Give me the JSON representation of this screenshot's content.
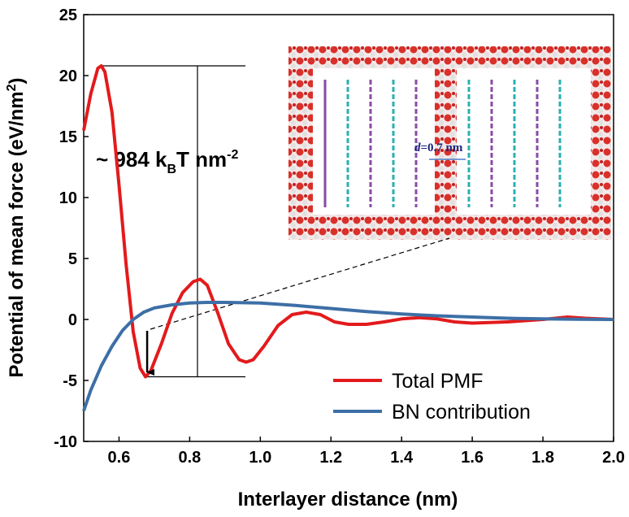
{
  "chart_data": {
    "type": "line",
    "x_label": "Interlayer distance (nm)",
    "y_label": {
      "text": "Potential of mean force (eV/nm",
      "sup": "2",
      "end": ")"
    },
    "annotation": {
      "pre": "~ 984 k",
      "sub": "B",
      "mid": "T nm",
      "sup": "-2"
    },
    "inset_label": {
      "var": "d",
      "rest": "=0.7 nm"
    },
    "xlim": [
      0.5,
      2.0
    ],
    "ylim": [
      -10,
      25
    ],
    "xticks": [
      0.6,
      0.8,
      {
        "value": 1,
        "label": "1.0"
      },
      1.2,
      1.4,
      1.6,
      1.8,
      {
        "value": 2,
        "label": "2.0"
      }
    ],
    "yticks": [
      -10,
      -5,
      0,
      5,
      10,
      15,
      20,
      25
    ],
    "legend": "lower right",
    "series": [
      {
        "name": "Total PMF",
        "color": "#e31a1c",
        "x": [
          0.5,
          0.52,
          0.54,
          0.55,
          0.56,
          0.58,
          0.6,
          0.62,
          0.64,
          0.66,
          0.675,
          0.69,
          0.72,
          0.75,
          0.78,
          0.81,
          0.83,
          0.85,
          0.88,
          0.91,
          0.94,
          0.96,
          0.98,
          1.01,
          1.05,
          1.09,
          1.13,
          1.17,
          1.21,
          1.25,
          1.3,
          1.35,
          1.4,
          1.45,
          1.5,
          1.55,
          1.6,
          1.7,
          1.8,
          1.87,
          1.92,
          2.0
        ],
        "values": [
          15.5,
          18.5,
          20.6,
          20.8,
          20.3,
          17,
          11,
          4.5,
          -1,
          -4,
          -4.7,
          -4.2,
          -2,
          0.5,
          2.2,
          3.1,
          3.3,
          2.8,
          0.5,
          -2,
          -3.3,
          -3.5,
          -3.3,
          -2.2,
          -0.5,
          0.4,
          0.6,
          0.4,
          -0.2,
          -0.4,
          -0.4,
          -0.2,
          0.05,
          0.15,
          0.05,
          -0.2,
          -0.3,
          -0.2,
          0,
          0.2,
          0.1,
          0
        ]
      },
      {
        "name": "BN contribution",
        "color": "#3d6fa6",
        "x": [
          0.5,
          0.52,
          0.55,
          0.58,
          0.61,
          0.64,
          0.67,
          0.7,
          0.75,
          0.8,
          0.85,
          0.9,
          1.0,
          1.1,
          1.2,
          1.3,
          1.4,
          1.5,
          1.6,
          1.7,
          1.8,
          1.9,
          2.0
        ],
        "values": [
          -7.5,
          -5.8,
          -3.8,
          -2.2,
          -0.9,
          0,
          0.6,
          0.95,
          1.2,
          1.35,
          1.4,
          1.4,
          1.35,
          1.15,
          0.9,
          0.65,
          0.45,
          0.3,
          0.2,
          0.1,
          0.05,
          0.02,
          0
        ]
      }
    ]
  }
}
